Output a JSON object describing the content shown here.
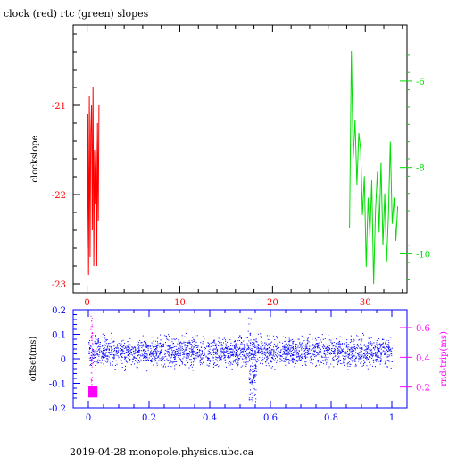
{
  "colors": {
    "red": "#ff0000",
    "green": "#00dd00",
    "blue": "#0000ff",
    "magenta": "#ff00ff",
    "black": "#000000"
  },
  "chart_data": [
    {
      "type": "line",
      "title": "clock (red) rtc (green) slopes",
      "ylabel": "clockslope",
      "xlim": [
        -1.5,
        34.5
      ],
      "xticks": [
        0,
        10,
        20,
        30
      ],
      "ylim": [
        -23.1,
        -20.1
      ],
      "yticks": [
        -21,
        -22,
        -23
      ],
      "y2lim": [
        -10.9,
        -4.7
      ],
      "y2ticks": [
        -6,
        -8,
        -10
      ],
      "series": [
        {
          "color": "red",
          "axis": "left",
          "x": [
            0.0,
            0.08,
            0.16,
            0.24,
            0.32,
            0.4,
            0.48,
            0.56,
            0.64,
            0.72,
            0.8,
            0.88,
            0.96,
            1.04,
            1.12,
            1.2,
            1.28
          ],
          "y": [
            -22.6,
            -21.1,
            -22.9,
            -20.9,
            -22.7,
            -21.3,
            -21.0,
            -22.4,
            -20.8,
            -22.8,
            -21.5,
            -22.1,
            -21.4,
            -22.8,
            -21.2,
            -22.3,
            -21.0
          ]
        },
        {
          "color": "green",
          "axis": "right",
          "x": [
            28.3,
            28.5,
            28.7,
            28.9,
            29.1,
            29.3,
            29.5,
            29.7,
            29.9,
            30.1,
            30.3,
            30.5,
            30.7,
            30.9,
            31.1,
            31.3,
            31.5,
            31.7,
            31.9,
            32.1,
            32.3,
            32.5,
            32.7,
            32.9,
            33.1,
            33.3,
            33.5
          ],
          "y": [
            -9.4,
            -5.3,
            -7.8,
            -6.9,
            -8.4,
            -7.2,
            -7.6,
            -9.1,
            -8.2,
            -10.3,
            -8.7,
            -9.6,
            -8.3,
            -10.7,
            -9.0,
            -8.1,
            -9.5,
            -7.9,
            -9.8,
            -8.6,
            -10.2,
            -9.1,
            -7.4,
            -9.3,
            -8.7,
            -9.7,
            -8.9
          ]
        }
      ]
    },
    {
      "type": "scatter",
      "ylabel": "offset(ms)",
      "y2label": "rnd-trip(ms)",
      "xlim": [
        -0.05,
        1.05
      ],
      "xticks": [
        "0",
        "0.2",
        "0.4",
        "0.6",
        "0.8",
        "1"
      ],
      "ylim": [
        -0.2,
        0.2
      ],
      "yticks": [
        "0.2",
        "0.1",
        "0",
        "-0.1",
        "-0.2"
      ],
      "y2lim": [
        0.06,
        0.72
      ],
      "y2ticks": [
        "0.6",
        "0.4",
        "0.2"
      ],
      "series": [
        {
          "color": "blue",
          "axis": "left",
          "description_band": {
            "x": [
              0.0,
              1.0
            ],
            "center": 0.03,
            "spread": 0.06,
            "dip_x": 0.54,
            "dip_min": -0.18
          }
        },
        {
          "color": "magenta",
          "axis": "right",
          "x": [
            0.0,
            0.03
          ],
          "y": [
            0.13,
            0.21
          ],
          "spike": {
            "x": 0.01,
            "y": 0.68
          }
        }
      ]
    }
  ],
  "footer": "2019-04-28  monopole.physics.ubc.ca"
}
